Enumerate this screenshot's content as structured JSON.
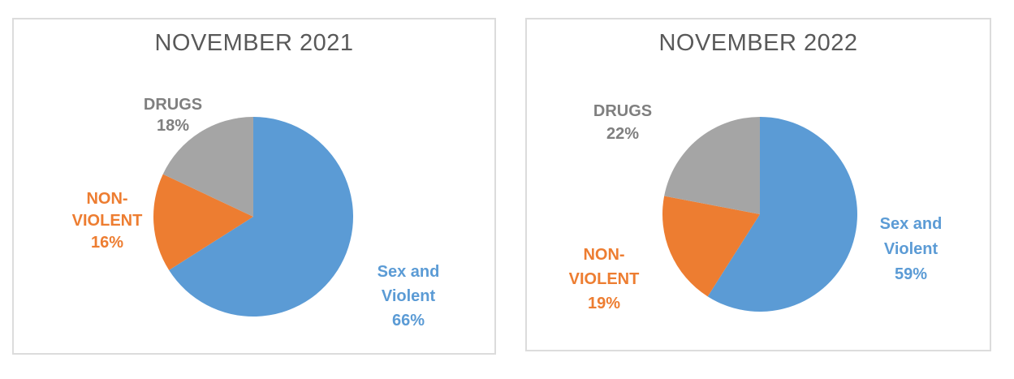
{
  "chart_data": [
    {
      "type": "pie",
      "title": "NOVEMBER 2021",
      "categories": [
        "Sex and Violent",
        "NON-VIOLENT",
        "DRUGS"
      ],
      "values": [
        66,
        16,
        18
      ],
      "colors": [
        "#5B9BD5",
        "#ED7D31",
        "#A5A5A5"
      ],
      "data_labels": [
        "Sex and\nViolent\n66%",
        "NON-\nVIOLENT\n16%",
        "DRUGS\n18%"
      ],
      "label_colors": [
        "#5B9BD5",
        "#ED7D31",
        "#7F7F7F"
      ],
      "start_angle": 0,
      "direction": "clockwise",
      "legend": "none"
    },
    {
      "type": "pie",
      "title": "NOVEMBER 2022",
      "categories": [
        "Sex and Violent",
        "NON-VIOLENT",
        "DRUGS"
      ],
      "values": [
        59,
        19,
        22
      ],
      "colors": [
        "#5B9BD5",
        "#ED7D31",
        "#A5A5A5"
      ],
      "data_labels": [
        "Sex and\nViolent\n59%",
        "NON-\nVIOLENT\n19%",
        "DRUGS\n22%"
      ],
      "label_colors": [
        "#5B9BD5",
        "#ED7D31",
        "#7F7F7F"
      ],
      "start_angle": 0,
      "direction": "clockwise",
      "legend": "none"
    }
  ]
}
